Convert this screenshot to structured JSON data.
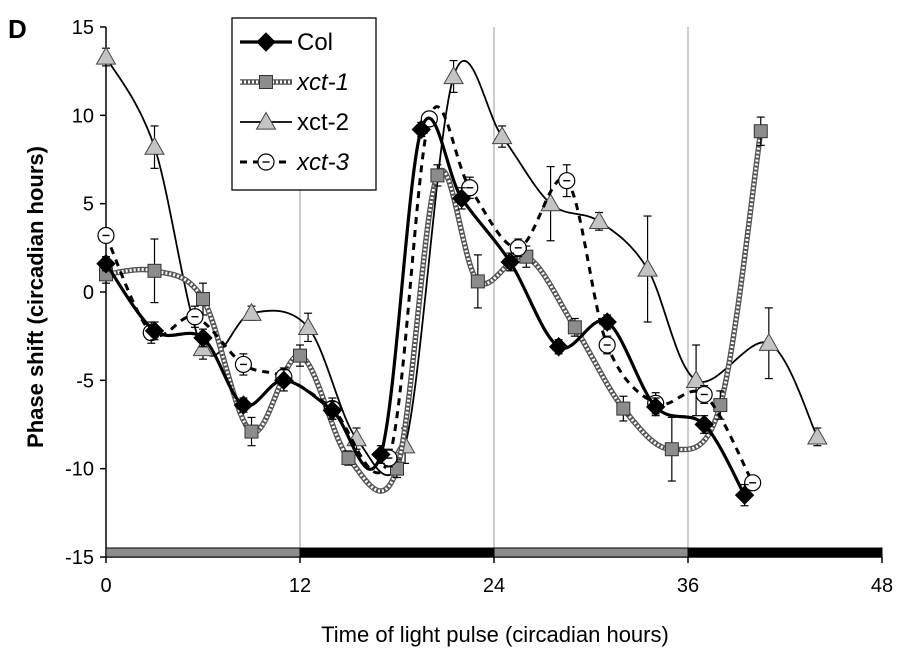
{
  "panel_label": "D",
  "chart_data": {
    "type": "line",
    "xlabel": "Time of light pulse (circadian hours)",
    "ylabel": "Phase shift (circadian hours)",
    "xlim": [
      0,
      48
    ],
    "ylim": [
      -15,
      15
    ],
    "xticks": [
      0,
      12,
      24,
      36,
      48
    ],
    "yticks": [
      15,
      10,
      5,
      0,
      -5,
      -10,
      -15
    ],
    "grid": "vertical lines at 12, 24, 36",
    "legend_position": "top-left",
    "light_dark_bar": [
      {
        "from": 0,
        "to": 12,
        "color": "#8c8c8c"
      },
      {
        "from": 12,
        "to": 24,
        "color": "#000000"
      },
      {
        "from": 24,
        "to": 36,
        "color": "#8c8c8c"
      },
      {
        "from": 36,
        "to": 48,
        "color": "#000000"
      }
    ],
    "series": [
      {
        "name": "Col",
        "italic": false,
        "marker": "diamond",
        "line": "solid-thick",
        "color": "#000000",
        "x": [
          0,
          3,
          6,
          8.5,
          11,
          14,
          17,
          19.5,
          22,
          25,
          28,
          31,
          34,
          37,
          39.5
        ],
        "y": [
          1.6,
          -2.2,
          -2.6,
          -6.4,
          -5.0,
          -6.7,
          -9.2,
          9.2,
          5.3,
          1.7,
          -3.1,
          -1.7,
          -6.5,
          -7.5,
          -11.5
        ],
        "err": [
          0.4,
          0.5,
          0.5,
          0.4,
          0.6,
          0.5,
          0.5,
          0.4,
          0.6,
          0.5,
          0.4,
          0.4,
          0.5,
          0.5,
          0.6
        ]
      },
      {
        "name": "xct-1",
        "italic": true,
        "marker": "square",
        "line": "dotted",
        "color": "#8a8a8a",
        "x": [
          0,
          3,
          6,
          9,
          12,
          15,
          18,
          20.5,
          23,
          26,
          29,
          32,
          35,
          38,
          40.5
        ],
        "y": [
          1.0,
          1.2,
          -0.4,
          -7.9,
          -3.6,
          -9.4,
          -10.0,
          6.6,
          0.6,
          2.0,
          -2.0,
          -6.6,
          -8.9,
          -6.4,
          9.1
        ],
        "err": [
          0.5,
          1.8,
          0.9,
          0.8,
          0.6,
          0.4,
          0.5,
          0.6,
          1.5,
          0.6,
          0.5,
          0.7,
          1.8,
          0.8,
          0.8
        ]
      },
      {
        "name": "xct-2",
        "italic": false,
        "marker": "triangle",
        "line": "solid-thin",
        "color": "#a9a9a9",
        "x": [
          0,
          3,
          6,
          9,
          12.5,
          15.5,
          18.5,
          21.5,
          24.5,
          27.5,
          30.5,
          33.5,
          36.5,
          41,
          44
        ],
        "y": [
          13.3,
          8.2,
          -3.2,
          -1.2,
          -2.0,
          -8.3,
          -8.7,
          12.2,
          8.8,
          5.0,
          4.0,
          1.3,
          -5.0,
          -2.9,
          -8.2
        ],
        "err": [
          0.5,
          1.2,
          0.6,
          0.4,
          0.8,
          0.6,
          1.0,
          0.9,
          0.6,
          2.1,
          0.5,
          3.0,
          2.0,
          2.0,
          0.5
        ]
      },
      {
        "name": "xct-3",
        "italic": true,
        "marker": "circle-dot",
        "line": "dashed",
        "color": "#000000",
        "x": [
          0,
          2.8,
          5.5,
          8.5,
          11,
          14,
          17.5,
          20,
          22.5,
          25.5,
          28.5,
          31,
          34,
          37,
          40
        ],
        "y": [
          3.2,
          -2.3,
          -1.4,
          -4.1,
          -4.8,
          -6.6,
          -9.4,
          9.8,
          5.9,
          2.5,
          6.3,
          -3.0,
          -6.3,
          -5.8,
          -10.8
        ],
        "err": [
          0.4,
          0.6,
          0.6,
          0.6,
          0.5,
          0.6,
          0.5,
          0.4,
          0.6,
          0.5,
          0.9,
          0.5,
          0.6,
          0.5,
          0.4
        ]
      }
    ]
  }
}
